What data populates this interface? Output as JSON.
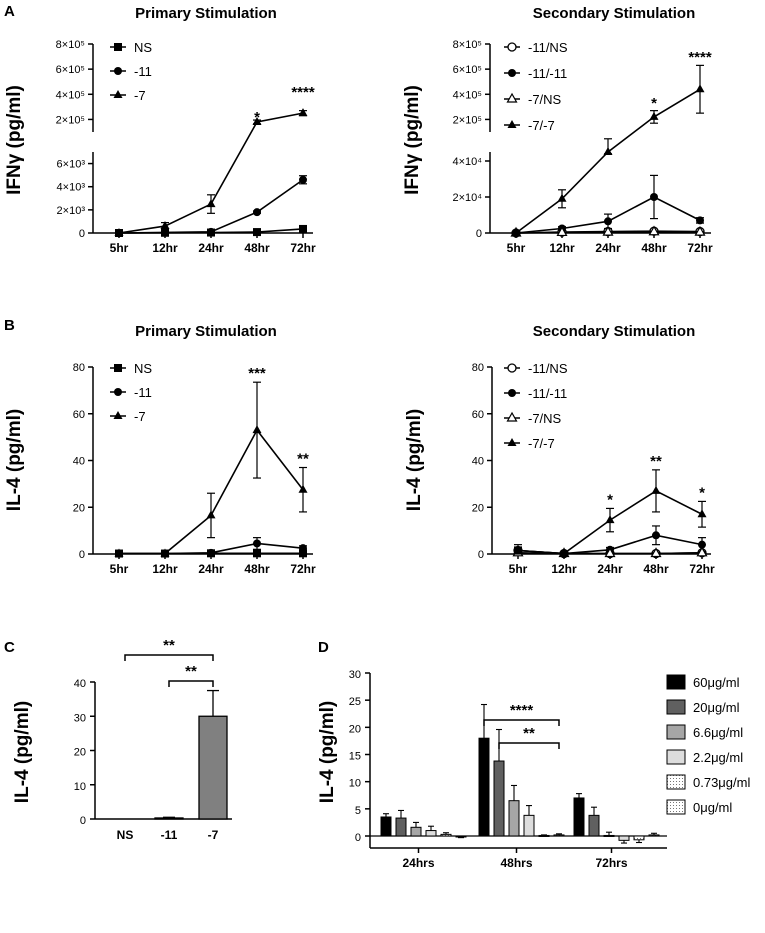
{
  "panels": {
    "a": "A",
    "b": "B",
    "c": "C",
    "d": "D"
  },
  "chart_data": [
    {
      "id": "A1",
      "type": "line",
      "panel": "A",
      "title": "Primary Stimulation",
      "ylabel": "IFNγ (pg/ml)",
      "xlabel": "",
      "categories": [
        "5hr",
        "12hr",
        "24hr",
        "48hr",
        "72hr"
      ],
      "axis_break": true,
      "lower_range": [
        0,
        7000
      ],
      "lower_ticks": [
        "0",
        "2×10³",
        "4×10³",
        "6×10³"
      ],
      "upper_range": [
        100000,
        800000
      ],
      "upper_ticks": [
        "2×10⁵",
        "4×10⁵",
        "6×10⁵",
        "8×10⁵"
      ],
      "series": [
        {
          "name": "NS",
          "marker": "square",
          "values": [
            0,
            20,
            40,
            80,
            350
          ],
          "errors": [
            0,
            20,
            20,
            50,
            150
          ]
        },
        {
          "name": "-11",
          "marker": "circle",
          "values": [
            0,
            50,
            100,
            1800,
            4600
          ],
          "errors": [
            0,
            30,
            50,
            100,
            350
          ]
        },
        {
          "name": "-7",
          "marker": "triangle",
          "values": [
            0,
            600,
            2500,
            180000,
            250000
          ],
          "errors": [
            0,
            300,
            800,
            15000,
            20000
          ]
        }
      ],
      "significance": [
        {
          "category": "48hr",
          "label": "*"
        },
        {
          "category": "72hr",
          "label": "****"
        }
      ]
    },
    {
      "id": "A2",
      "type": "line",
      "panel": "A",
      "title": "Secondary Stimulation",
      "ylabel": "IFNγ (pg/ml)",
      "xlabel": "",
      "categories": [
        "5hr",
        "12hr",
        "24hr",
        "48hr",
        "72hr"
      ],
      "axis_break": true,
      "lower_range": [
        0,
        45000
      ],
      "lower_ticks": [
        "0",
        "2×10⁴",
        "4×10⁴"
      ],
      "upper_range": [
        100000,
        800000
      ],
      "upper_ticks": [
        "2×10⁵",
        "4×10⁵",
        "6×10⁵",
        "8×10⁵"
      ],
      "series": [
        {
          "name": "-11/NS",
          "marker": "circle-open",
          "values": [
            0,
            500,
            800,
            1000,
            800
          ],
          "errors": [
            0,
            200,
            300,
            400,
            300
          ]
        },
        {
          "name": "-11/-11",
          "marker": "circle",
          "values": [
            0,
            2500,
            6500,
            20000,
            7000
          ],
          "errors": [
            0,
            1000,
            4000,
            12000,
            1500
          ]
        },
        {
          "name": "-7/NS",
          "marker": "triangle-open",
          "values": [
            0,
            300,
            500,
            700,
            500
          ],
          "errors": [
            0,
            100,
            200,
            300,
            200
          ]
        },
        {
          "name": "-7/-7",
          "marker": "triangle",
          "values": [
            0,
            19000,
            45000,
            220000,
            440000
          ],
          "errors": [
            0,
            5000,
            1000,
            50000,
            190000
          ]
        }
      ],
      "significance": [
        {
          "category": "48hr",
          "label": "*"
        },
        {
          "category": "72hr",
          "label": "****"
        }
      ]
    },
    {
      "id": "B1",
      "type": "line",
      "panel": "B",
      "title": "Primary Stimulation",
      "ylabel": "IL-4 (pg/ml)",
      "xlabel": "",
      "categories": [
        "5hr",
        "12hr",
        "24hr",
        "48hr",
        "72hr"
      ],
      "ylim": [
        0,
        80
      ],
      "yticks": [
        "0",
        "20",
        "40",
        "60",
        "80"
      ],
      "series": [
        {
          "name": "NS",
          "marker": "square",
          "values": [
            0.2,
            0.2,
            0.3,
            0.3,
            0.3
          ],
          "errors": [
            0.5,
            0.3,
            0.3,
            0.3,
            0.3
          ]
        },
        {
          "name": "-11",
          "marker": "circle",
          "values": [
            0.2,
            0.2,
            0.5,
            4.5,
            2.5
          ],
          "errors": [
            0.3,
            0.3,
            0.5,
            2.5,
            1
          ]
        },
        {
          "name": "-7",
          "marker": "triangle",
          "values": [
            0.2,
            0.2,
            16.5,
            53,
            27.5
          ],
          "errors": [
            0.3,
            0.3,
            9.5,
            20.5,
            9.5
          ]
        }
      ],
      "significance": [
        {
          "category": "48hr",
          "label": "***"
        },
        {
          "category": "72hr",
          "label": "**"
        }
      ]
    },
    {
      "id": "B2",
      "type": "line",
      "panel": "B",
      "title": "Secondary Stimulation",
      "ylabel": "IL-4 (pg/ml)",
      "xlabel": "",
      "categories": [
        "5hr",
        "12hr",
        "24hr",
        "48hr",
        "72hr"
      ],
      "ylim": [
        0,
        80
      ],
      "yticks": [
        "0",
        "20",
        "40",
        "60",
        "80"
      ],
      "series": [
        {
          "name": "-11/NS",
          "marker": "circle-open",
          "values": [
            1.5,
            0.2,
            0.2,
            0.2,
            0.5
          ],
          "errors": [
            1,
            0.3,
            0.3,
            0.3,
            0.5
          ]
        },
        {
          "name": "-11/-11",
          "marker": "circle",
          "values": [
            1.5,
            0.2,
            1.8,
            8,
            4
          ],
          "errors": [
            2.5,
            0.3,
            1,
            4,
            3
          ]
        },
        {
          "name": "-7/NS",
          "marker": "triangle-open",
          "values": [
            0.5,
            0.2,
            0.2,
            0.2,
            0.5
          ],
          "errors": [
            0.5,
            0.3,
            0.3,
            0.3,
            0.5
          ]
        },
        {
          "name": "-7/-7",
          "marker": "triangle",
          "values": [
            1.5,
            0.2,
            14.5,
            27,
            17
          ],
          "errors": [
            1.5,
            0.3,
            5,
            9,
            5.5
          ]
        }
      ],
      "significance": [
        {
          "category": "24hr",
          "label": "*"
        },
        {
          "category": "48hr",
          "label": "**"
        },
        {
          "category": "72hr",
          "label": "*"
        }
      ]
    },
    {
      "id": "C",
      "type": "bar",
      "panel": "C",
      "title": "",
      "ylabel": "IL-4 (pg/ml)",
      "xlabel": "",
      "categories": [
        "NS",
        "-11",
        "-7"
      ],
      "values": [
        0,
        0.3,
        30
      ],
      "errors": [
        0,
        0.2,
        7.5
      ],
      "ylim": [
        0,
        40
      ],
      "yticks": [
        "0",
        "10",
        "20",
        "30",
        "40"
      ],
      "bar_color": "#808080",
      "brackets": [
        {
          "from": "NS",
          "to": "-7",
          "label": "**"
        },
        {
          "from": "-11",
          "to": "-7",
          "label": "**"
        }
      ]
    },
    {
      "id": "D",
      "type": "bar",
      "panel": "D",
      "title": "",
      "ylabel": "IL-4 (pg/ml)",
      "xlabel": "",
      "categories": [
        "24hrs",
        "48hrs",
        "72hrs"
      ],
      "ylim": [
        -2,
        30
      ],
      "yticks": [
        "0",
        "5",
        "10",
        "15",
        "20",
        "25",
        "30"
      ],
      "series": [
        {
          "name": "60μg/ml",
          "color": "#000000",
          "pattern": "solid",
          "values": [
            3.5,
            18,
            7
          ],
          "errors": [
            0.6,
            6.2,
            0.8
          ]
        },
        {
          "name": "20μg/ml",
          "color": "#606060",
          "pattern": "solid",
          "values": [
            3.3,
            13.8,
            3.8
          ],
          "errors": [
            1.4,
            5.8,
            1.5
          ]
        },
        {
          "name": "6.6μg/ml",
          "color": "#a6a6a6",
          "pattern": "solid",
          "values": [
            1.6,
            6.5,
            0.1
          ],
          "errors": [
            0.9,
            2.8,
            0.6
          ]
        },
        {
          "name": "2.2μg/ml",
          "color": "#dddddd",
          "pattern": "solid",
          "values": [
            1.0,
            3.8,
            -0.8
          ],
          "errors": [
            0.8,
            1.8,
            0.5
          ]
        },
        {
          "name": "0.73μg/ml",
          "color": "#ffffff",
          "pattern": "dotted",
          "values": [
            0.3,
            0.1,
            -0.7
          ],
          "errors": [
            0.3,
            0.1,
            0.5
          ]
        },
        {
          "name": "0μg/ml",
          "color": "#ffffff",
          "pattern": "dotted",
          "values": [
            -0.1,
            0.2,
            0.2
          ],
          "errors": [
            0.2,
            0.2,
            0.3
          ]
        }
      ],
      "brackets": [
        {
          "group": "48hrs",
          "from": 0,
          "to": 5,
          "label": "****"
        },
        {
          "group": "48hrs",
          "from": 1,
          "to": 5,
          "label": "**"
        }
      ]
    }
  ]
}
